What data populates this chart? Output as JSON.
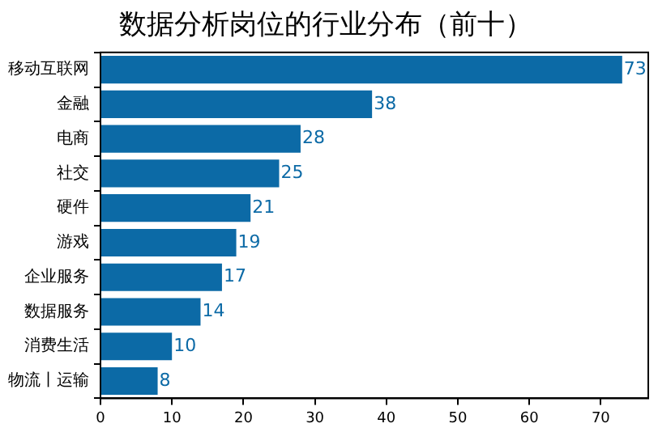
{
  "chart_data": {
    "type": "bar",
    "orientation": "horizontal",
    "title": "数据分析岗位的行业分布（前十）",
    "categories": [
      "移动互联网",
      "金融",
      "电商",
      "社交",
      "硬件",
      "游戏",
      "企业服务",
      "数据服务",
      "消费生活",
      "物流丨运输"
    ],
    "values": [
      73,
      38,
      28,
      25,
      21,
      19,
      17,
      14,
      10,
      8
    ],
    "color": "#0c6aa6",
    "xlim": [
      0,
      76.65
    ],
    "xticks": [
      0,
      10,
      20,
      30,
      40,
      50,
      60,
      70
    ],
    "grid": false,
    "legend": false,
    "data_labels": true
  }
}
